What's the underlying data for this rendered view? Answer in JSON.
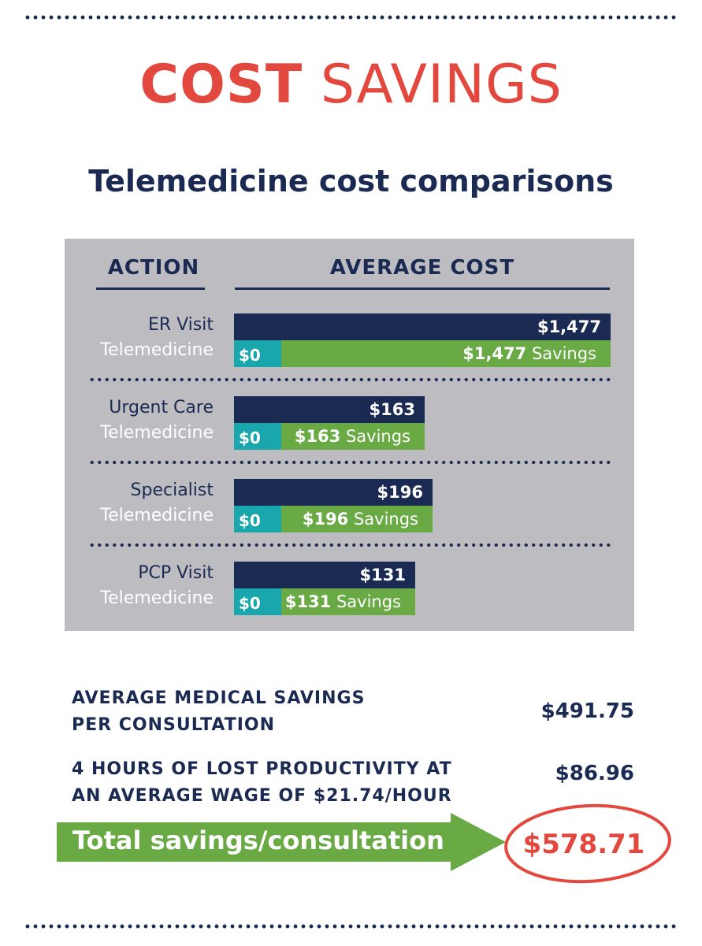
{
  "title": {
    "bold": "COST",
    "light": "SAVINGS"
  },
  "subtitle": "Telemedicine cost comparisons",
  "table": {
    "col_action": "ACTION",
    "col_cost": "AVERAGE COST"
  },
  "chart_data": {
    "type": "bar",
    "title": "Telemedicine cost comparisons",
    "xlabel": "AVERAGE COST",
    "ylabel": "ACTION",
    "rows": [
      {
        "label": "ER Visit",
        "sub_label": "Telemedicine",
        "cost": 1477,
        "cost_label": "$1,477",
        "tele_cost": 0,
        "tele_label": "$0",
        "savings_label": "$1,477",
        "savings_word": "Savings"
      },
      {
        "label": "Urgent Care",
        "sub_label": "Telemedicine",
        "cost": 163,
        "cost_label": "$163",
        "tele_cost": 0,
        "tele_label": "$0",
        "savings_label": "$163",
        "savings_word": "Savings"
      },
      {
        "label": "Specialist",
        "sub_label": "Telemedicine",
        "cost": 196,
        "cost_label": "$196",
        "tele_cost": 0,
        "tele_label": "$0",
        "savings_label": "$196",
        "savings_word": "Savings"
      },
      {
        "label": "PCP Visit",
        "sub_label": "Telemedicine",
        "cost": 131,
        "cost_label": "$131",
        "tele_cost": 0,
        "tele_label": "$0",
        "savings_label": "$131",
        "savings_word": "Savings"
      }
    ],
    "colors": {
      "cost": "#1b2a52",
      "telemedicine": "#1aa6ad",
      "savings": "#6aaa45"
    }
  },
  "summary": {
    "avg_label_1": "AVERAGE MEDICAL SAVINGS",
    "avg_label_2": "PER CONSULTATION",
    "avg_value": "$491.75",
    "prod_label_1": "4 HOURS OF LOST PRODUCTIVITY AT",
    "prod_label_2": "AN AVERAGE WAGE OF $21.74/HOUR",
    "prod_value": "$86.96",
    "total_label": "Total savings/consultation",
    "total_value": "$578.71"
  },
  "colors": {
    "accent": "#e2483d",
    "navy": "#1b2a52",
    "green": "#6aaa45",
    "teal": "#1aa6ad",
    "panel": "#bdbdc1"
  }
}
